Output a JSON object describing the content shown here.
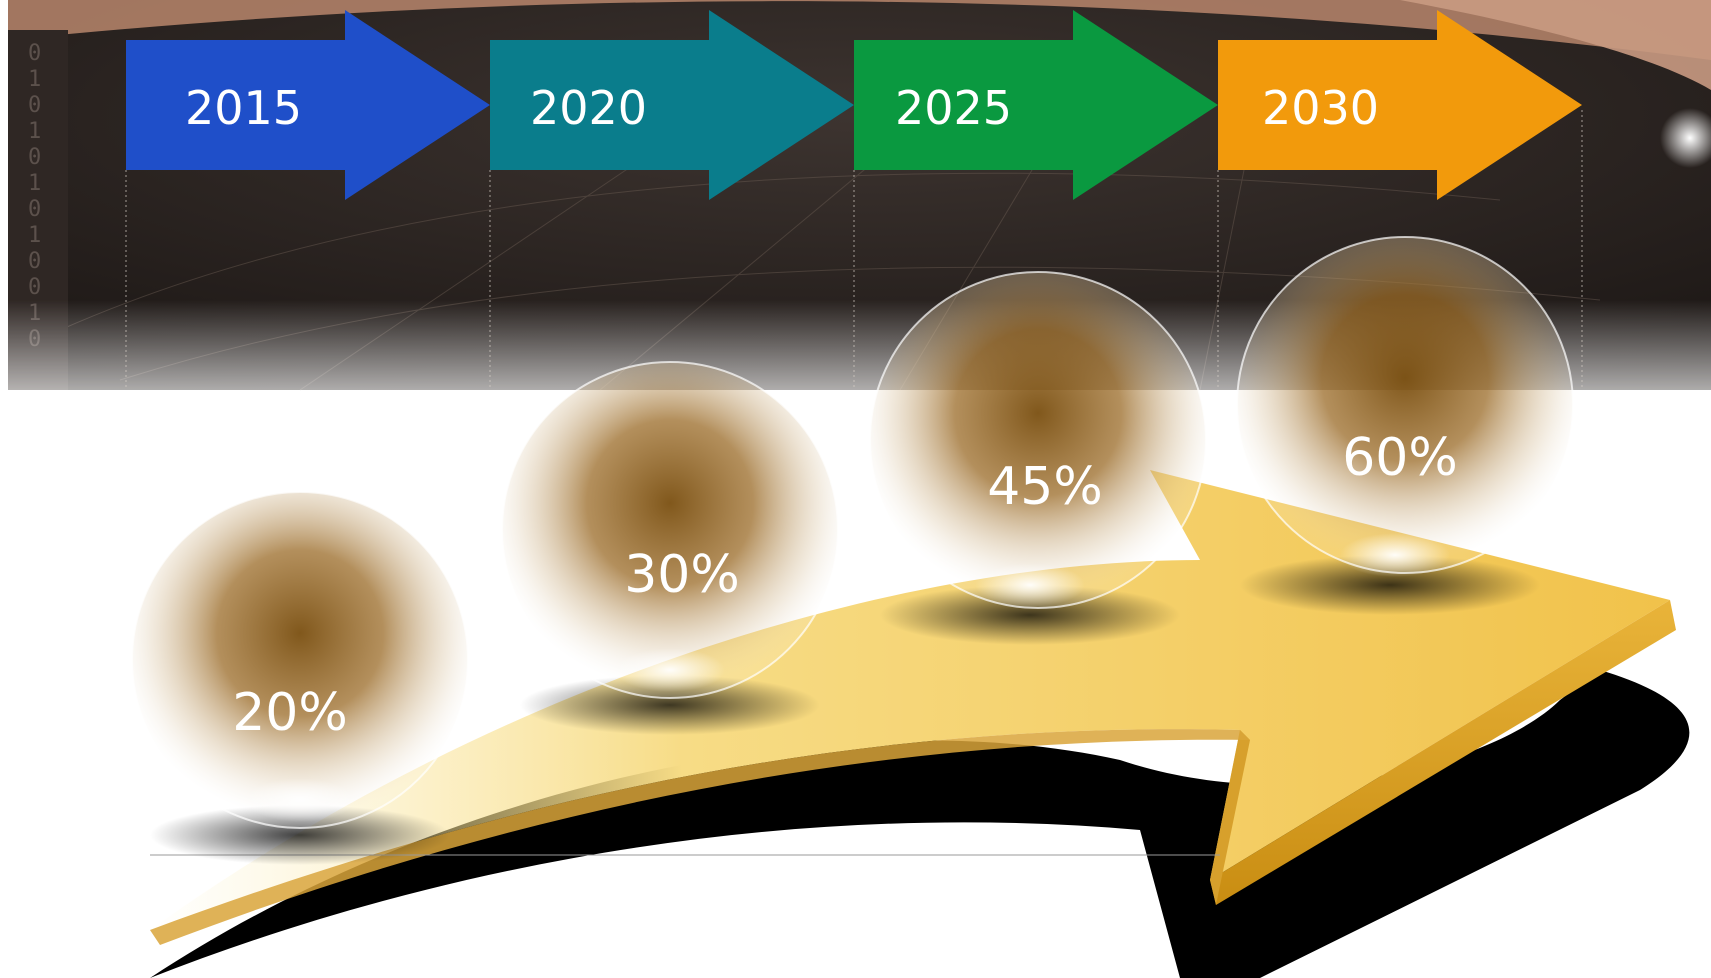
{
  "timeline": {
    "steps": [
      {
        "year": "2015",
        "percent": "20%",
        "value": 20,
        "color": "#1f4fc9"
      },
      {
        "year": "2020",
        "percent": "30%",
        "value": 30,
        "color": "#0a7d8c"
      },
      {
        "year": "2025",
        "percent": "45%",
        "value": 45,
        "color": "#0a9940"
      },
      {
        "year": "2030",
        "percent": "60%",
        "value": 60,
        "color": "#f29a0c"
      }
    ]
  },
  "colors": {
    "background_top": "#2a2320",
    "gold_arrow": "#f5cf63",
    "sphere_core": "#7a4f10"
  }
}
